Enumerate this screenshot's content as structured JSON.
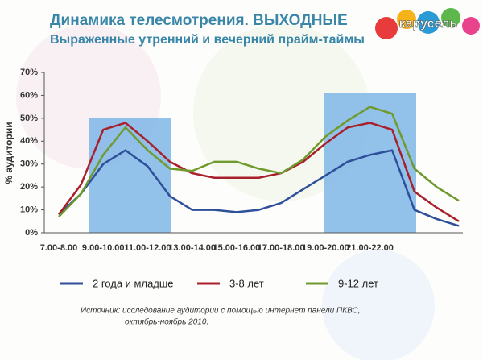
{
  "logo": "карусель",
  "chart_data": {
    "type": "line",
    "title": "Динамика телесмотрения. ВЫХОДНЫЕ",
    "subtitle": "Выраженные утренний и вечерний прайм-таймы",
    "y_label": "% аудитории",
    "source": [
      "Источник: исследование аудитории с помощью интернет панели ПКВС,",
      "октябрь-ноябрь 2010."
    ],
    "categories": [
      "7.00-8.00",
      null,
      "9.00-10.00",
      null,
      "11.00-12.00",
      null,
      "13.00-14.00",
      null,
      "15.00-16.00",
      null,
      "17.00-18.00",
      null,
      "19.00-20.00",
      null,
      "21.00-22.00",
      null,
      null,
      null,
      null
    ],
    "series": [
      {
        "name": "2 года и младше",
        "color": "#2e4f9a",
        "values": [
          8,
          17,
          30,
          36,
          29,
          16,
          10,
          10,
          9,
          10,
          13,
          19,
          25,
          31,
          34,
          36,
          10,
          6,
          3
        ]
      },
      {
        "name": "3-8 лет",
        "color": "#a8202a",
        "values": [
          8,
          21,
          45,
          48,
          40,
          31,
          26,
          24,
          24,
          24,
          26,
          31,
          39,
          46,
          48,
          45,
          18,
          11,
          5
        ]
      },
      {
        "name": "9-12 лет",
        "color": "#6f9a2e",
        "values": [
          7,
          17,
          34,
          46,
          36,
          28,
          27,
          31,
          31,
          28,
          26,
          32,
          42,
          49,
          55,
          52,
          28,
          20,
          14
        ]
      }
    ],
    "ylim": [
      0,
      70
    ],
    "yticks": [
      {
        "value": 0,
        "label": "0%"
      },
      {
        "value": 10,
        "label": "10%"
      },
      {
        "value": 20,
        "label": "20%"
      },
      {
        "value": 30,
        "label": "30%"
      },
      {
        "value": 40,
        "label": "40%"
      },
      {
        "value": 50,
        "label": "50%"
      },
      {
        "value": 60,
        "label": "60%"
      },
      {
        "value": 70,
        "label": "70%"
      }
    ],
    "grid": false
  }
}
